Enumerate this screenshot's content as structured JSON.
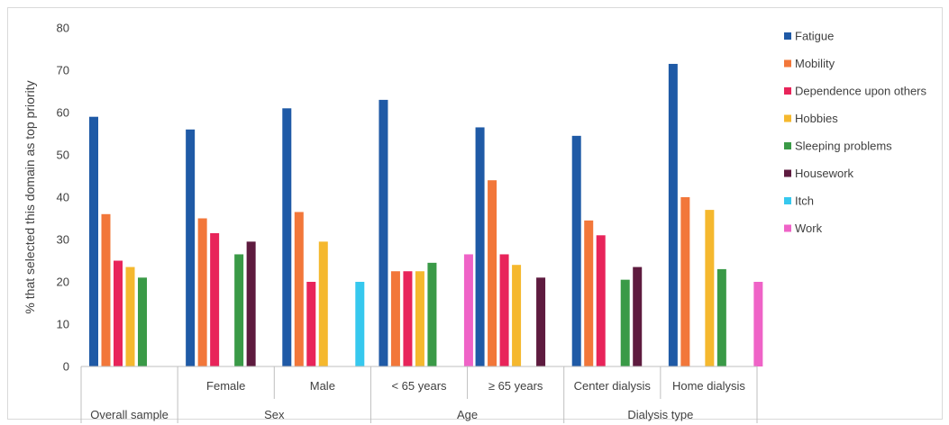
{
  "chart_data": {
    "type": "bar",
    "ylabel": "% that selected this domain as top priority",
    "ylim": [
      0,
      80
    ],
    "yticks": [
      0,
      10,
      20,
      30,
      40,
      50,
      60,
      70,
      80
    ],
    "grid": false,
    "legend_position": "right",
    "groups": [
      {
        "name": "Overall sample",
        "span": 1
      },
      {
        "name": "Sex",
        "span": 2
      },
      {
        "name": "Age",
        "span": 2
      },
      {
        "name": "Dialysis type",
        "span": 2
      }
    ],
    "categories": [
      "",
      "Female",
      "Male",
      "< 65 years",
      "≥ 65 years",
      "Center dialysis",
      "Home dialysis"
    ],
    "series": [
      {
        "name": "Fatigue",
        "color": "#1f5aa6",
        "values": [
          59,
          56,
          61,
          63,
          56.5,
          54.5,
          71.5
        ]
      },
      {
        "name": "Mobility",
        "color": "#f2773a",
        "values": [
          36,
          35,
          36.5,
          22.5,
          44,
          34.5,
          40
        ]
      },
      {
        "name": "Dependence upon others",
        "color": "#e8245a",
        "values": [
          25,
          31.5,
          20,
          22.5,
          26.5,
          31,
          null
        ]
      },
      {
        "name": "Hobbies",
        "color": "#f5b82e",
        "values": [
          23.5,
          null,
          29.5,
          22.5,
          24,
          null,
          37
        ]
      },
      {
        "name": "Sleeping problems",
        "color": "#3a9a47",
        "values": [
          21,
          26.5,
          null,
          24.5,
          null,
          20.5,
          23
        ]
      },
      {
        "name": "Housework",
        "color": "#5e1b3f",
        "values": [
          null,
          29.5,
          null,
          null,
          21,
          23.5,
          null
        ]
      },
      {
        "name": "Itch",
        "color": "#36c8ee",
        "values": [
          null,
          null,
          20,
          null,
          null,
          null,
          null
        ]
      },
      {
        "name": "Work",
        "color": "#ef63c7",
        "values": [
          null,
          null,
          null,
          26.5,
          null,
          null,
          20
        ]
      }
    ]
  }
}
